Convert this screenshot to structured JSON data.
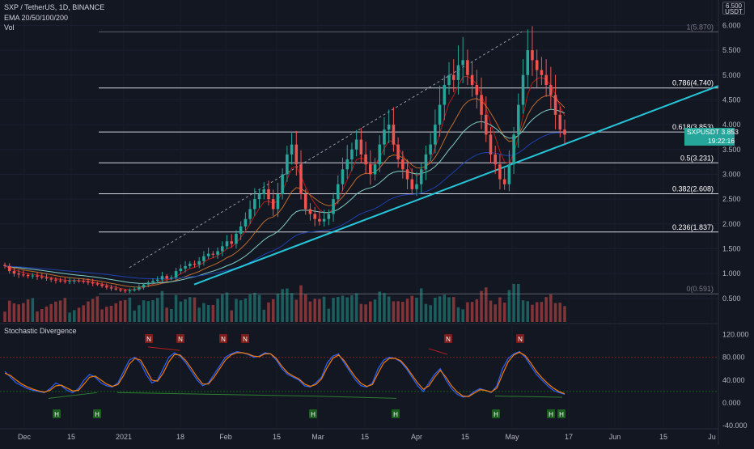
{
  "header": {
    "symbol": "SXP / TetherUS, 1D, BINANCE",
    "indicator": "EMA 20/50/100/200",
    "volume": "Vol",
    "lower_indicator": "Stochastic Divergence"
  },
  "currency_badge": {
    "top": "6.500",
    "bottom": "USDT"
  },
  "price_tag": {
    "symbol": "SXPUSDT",
    "price": "3.853",
    "countdown": "19:22:16"
  },
  "colors": {
    "background": "#131722",
    "up": "#26a69a",
    "down": "#ef5350",
    "trendline": "#26c6da",
    "ema20": "#b71c1c",
    "ema50": "#bf6a2b",
    "ema100": "#80cbc4",
    "ema200": "#1e40af",
    "stoch_k": "#2962ff",
    "stoch_d": "#f57c00"
  },
  "chart_data": [
    {
      "type": "candlestick",
      "title": "SXP / TetherUS, 1D, BINANCE",
      "y_axis_ticks": [
        "6.000",
        "5.500",
        "5.000",
        "4.500",
        "4.000",
        "3.500",
        "3.000",
        "2.500",
        "2.000",
        "1.500",
        "1.000",
        "0.500"
      ],
      "x_axis_ticks": [
        "Dec",
        "15",
        "2021",
        "18",
        "Feb",
        "15",
        "Mar",
        "15",
        "Apr",
        "15",
        "May",
        "17",
        "Jun",
        "15",
        "Ju"
      ],
      "fib_levels": [
        {
          "ratio": 1,
          "price": 5.87,
          "label": "1(5.870)"
        },
        {
          "ratio": 0.786,
          "price": 4.74,
          "label": "0.786(4.740)"
        },
        {
          "ratio": 0.618,
          "price": 3.853,
          "label": "0.618(3.853)"
        },
        {
          "ratio": 0.5,
          "price": 3.231,
          "label": "0.5(3.231)"
        },
        {
          "ratio": 0.382,
          "price": 2.608,
          "label": "0.382(2.608)"
        },
        {
          "ratio": 0.236,
          "price": 1.837,
          "label": "0.236(1.837)"
        },
        {
          "ratio": 0,
          "price": 0.591,
          "label": "0(0.591)"
        }
      ],
      "close_series": [
        1.15,
        1.05,
        1.0,
        0.98,
        0.97,
        0.95,
        0.96,
        0.94,
        0.92,
        0.9,
        0.88,
        0.86,
        0.85,
        0.84,
        0.85,
        0.86,
        0.85,
        0.84,
        0.82,
        0.8,
        0.78,
        0.75,
        0.72,
        0.7,
        0.68,
        0.66,
        0.65,
        0.66,
        0.68,
        0.72,
        0.78,
        0.82,
        0.85,
        0.88,
        0.95,
        0.9,
        0.92,
        1.05,
        1.1,
        1.15,
        1.2,
        1.18,
        1.25,
        1.35,
        1.4,
        1.38,
        1.45,
        1.55,
        1.65,
        1.6,
        1.8,
        1.95,
        2.1,
        2.3,
        2.5,
        2.6,
        2.7,
        2.5,
        2.3,
        2.6,
        3.0,
        3.4,
        3.6,
        3.2,
        2.6,
        2.3,
        2.2,
        2.1,
        2.05,
        2.1,
        2.2,
        2.5,
        2.8,
        3.1,
        3.3,
        3.5,
        3.7,
        3.4,
        3.2,
        3.0,
        3.2,
        3.6,
        3.9,
        4.0,
        3.6,
        3.3,
        3.1,
        2.9,
        2.7,
        2.8,
        3.1,
        3.4,
        3.6,
        4.0,
        4.4,
        4.8,
        5.0,
        4.9,
        5.2,
        5.3,
        5.0,
        4.8,
        4.6,
        4.2,
        3.8,
        3.4,
        3.2,
        2.9,
        2.8,
        3.2,
        3.8,
        4.4,
        5.0,
        5.5,
        5.3,
        5.1,
        5.0,
        4.8,
        4.6,
        4.2,
        3.9,
        3.8
      ],
      "trendlines": [
        "lower-trendline",
        "fib-diagonal"
      ]
    },
    {
      "type": "line",
      "title": "Stochastic Divergence",
      "y_axis_ticks": [
        "120.000",
        "80.000",
        "40.000",
        "0.000",
        "-40.000"
      ],
      "series": [
        {
          "name": "K",
          "values": [
            55,
            45,
            35,
            30,
            25,
            22,
            20,
            18,
            25,
            35,
            30,
            22,
            18,
            25,
            40,
            50,
            45,
            35,
            30,
            28,
            35,
            55,
            75,
            80,
            70,
            50,
            35,
            40,
            60,
            80,
            88,
            82,
            70,
            55,
            40,
            30,
            35,
            50,
            65,
            80,
            86,
            90,
            88,
            85,
            80,
            82,
            88,
            86,
            75,
            60,
            50,
            45,
            40,
            30,
            28,
            35,
            45,
            70,
            82,
            86,
            70,
            55,
            40,
            30,
            28,
            35,
            60,
            75,
            80,
            78,
            72,
            60,
            45,
            30,
            20,
            35,
            50,
            60,
            40,
            25,
            15,
            10,
            12,
            20,
            25,
            22,
            18,
            30,
            60,
            78,
            86,
            90,
            80,
            65,
            50,
            40,
            30,
            22,
            18,
            15
          ]
        },
        {
          "name": "D",
          "values": [
            52,
            48,
            40,
            33,
            28,
            24,
            21,
            19,
            22,
            30,
            31,
            26,
            21,
            22,
            33,
            45,
            47,
            40,
            33,
            29,
            32,
            48,
            68,
            78,
            75,
            58,
            40,
            38,
            52,
            72,
            85,
            84,
            74,
            60,
            45,
            33,
            33,
            45,
            60,
            75,
            84,
            88,
            88,
            86,
            82,
            81,
            86,
            86,
            78,
            64,
            53,
            47,
            42,
            33,
            29,
            32,
            42,
            62,
            78,
            84,
            74,
            59,
            45,
            34,
            29,
            32,
            52,
            70,
            78,
            78,
            74,
            63,
            49,
            35,
            24,
            30,
            45,
            57,
            45,
            30,
            19,
            12,
            11,
            17,
            23,
            22,
            19,
            26,
            50,
            72,
            84,
            89,
            83,
            70,
            55,
            44,
            34,
            26,
            20,
            16
          ]
        }
      ],
      "markers": [
        {
          "label": "H",
          "kind": "bullish"
        },
        {
          "label": "N",
          "kind": "bearish"
        }
      ]
    }
  ]
}
